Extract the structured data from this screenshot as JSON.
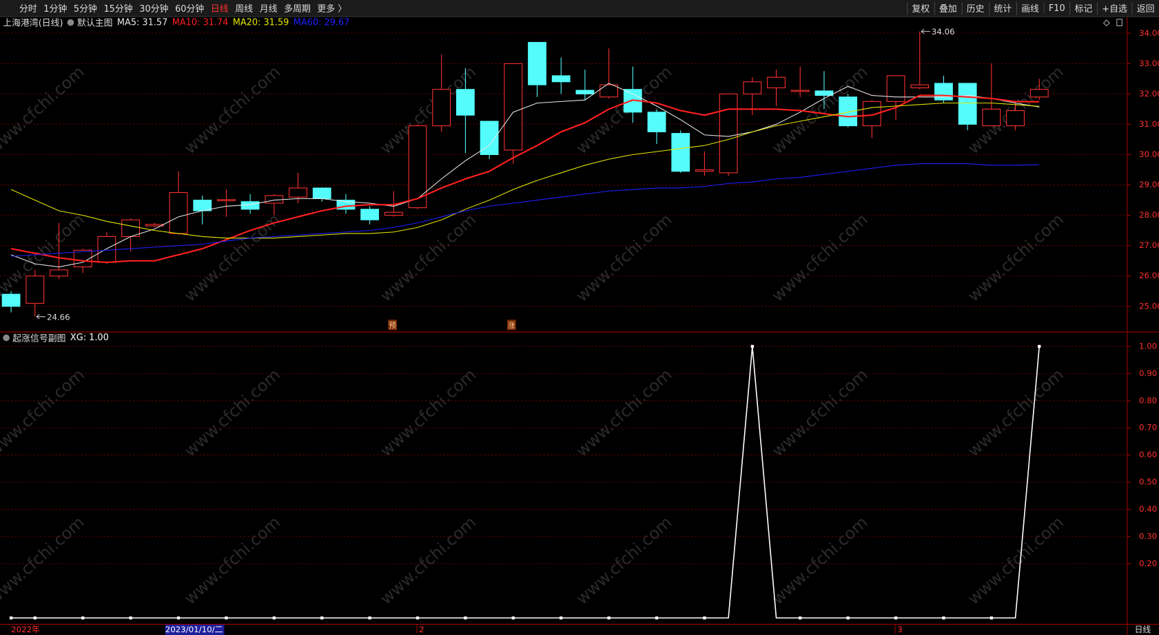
{
  "toolbar": {
    "left": [
      {
        "text": "分时"
      },
      {
        "text": "1分钟"
      },
      {
        "text": "5分钟"
      },
      {
        "text": "15分钟"
      },
      {
        "text": "30分钟"
      },
      {
        "text": "60分钟"
      },
      {
        "text": "日线",
        "selected": true
      },
      {
        "text": "周线"
      },
      {
        "text": "月线"
      },
      {
        "text": "多周期"
      },
      {
        "text": "更多 〉"
      }
    ],
    "right": [
      "复权",
      "叠加",
      "历史",
      "统计",
      "画线",
      "F10",
      "标记",
      "+自选",
      "返回"
    ]
  },
  "watermark": "www.cfchi.com",
  "period_label": "日线",
  "chart_data": [
    {
      "type": "candlestick",
      "title": "上海港湾(日线)",
      "subtitle": "默认主图",
      "categories": [
        "2022年",
        null,
        null,
        null,
        null,
        null,
        null,
        "2023/01/10/二",
        null,
        null,
        null,
        null,
        null,
        null,
        null,
        null,
        null,
        "2",
        null,
        null,
        null,
        null,
        null,
        null,
        null,
        null,
        null,
        null,
        null,
        null,
        null,
        null,
        null,
        null,
        null,
        null,
        null,
        "3",
        null,
        null,
        null,
        null,
        null,
        null
      ],
      "open": [
        25.4,
        25.1,
        26.0,
        26.3,
        26.45,
        27.3,
        27.65,
        27.4,
        28.5,
        28.48,
        28.45,
        28.4,
        28.6,
        28.9,
        28.5,
        28.2,
        28.0,
        28.25,
        30.95,
        32.15,
        31.1,
        30.15,
        33.7,
        32.6,
        32.12,
        31.9,
        32.15,
        31.4,
        30.7,
        29.45,
        29.4,
        32.0,
        32.2,
        32.08,
        32.1,
        31.9,
        30.95,
        31.75,
        32.2,
        32.35,
        32.35,
        30.95,
        30.95,
        31.9
      ],
      "high": [
        25.5,
        26.2,
        27.75,
        26.9,
        27.45,
        27.9,
        27.75,
        29.45,
        28.65,
        28.85,
        28.7,
        28.7,
        29.4,
        28.9,
        28.7,
        28.3,
        28.8,
        31.0,
        33.3,
        32.85,
        31.1,
        33.0,
        33.7,
        33.2,
        32.8,
        33.5,
        32.9,
        31.5,
        30.8,
        30.1,
        32.0,
        32.55,
        32.8,
        32.9,
        32.75,
        32.0,
        31.8,
        32.6,
        34.06,
        32.6,
        32.35,
        33.0,
        31.75,
        32.5
      ],
      "low": [
        24.8,
        24.66,
        25.9,
        26.1,
        26.4,
        26.8,
        27.6,
        27.35,
        27.7,
        27.95,
        28.05,
        28.0,
        28.4,
        28.45,
        28.05,
        27.7,
        27.95,
        28.2,
        30.75,
        30.05,
        29.85,
        29.7,
        31.9,
        32.0,
        31.8,
        31.85,
        31.05,
        30.35,
        29.4,
        29.3,
        29.3,
        31.3,
        31.6,
        31.9,
        31.5,
        30.9,
        30.55,
        31.15,
        32.15,
        31.7,
        30.8,
        30.95,
        30.8,
        31.8
      ],
      "close": [
        25.0,
        26.0,
        26.2,
        26.85,
        27.3,
        27.85,
        27.7,
        28.75,
        28.15,
        28.52,
        28.2,
        28.65,
        28.9,
        28.55,
        28.2,
        27.85,
        28.1,
        30.95,
        32.15,
        31.3,
        30.0,
        33.0,
        32.3,
        32.4,
        32.0,
        32.3,
        31.4,
        30.75,
        29.45,
        29.5,
        32.0,
        32.4,
        32.55,
        32.12,
        31.95,
        30.95,
        31.75,
        32.6,
        32.3,
        31.8,
        31.0,
        31.5,
        31.45,
        32.15
      ],
      "up_color": "#ff3232",
      "down_color": "#54fcfc",
      "max_high": 34.06,
      "min_low": 24.66,
      "series": [
        {
          "name": "MA5: 31.57",
          "color": "#e8e8e8",
          "width": 1,
          "values": [
            26.7,
            26.4,
            26.3,
            26.45,
            26.9,
            27.3,
            27.55,
            27.95,
            28.15,
            28.3,
            28.35,
            28.5,
            28.55,
            28.55,
            28.45,
            28.4,
            28.3,
            28.55,
            29.2,
            29.8,
            30.3,
            31.4,
            31.7,
            31.75,
            31.8,
            32.35,
            32.0,
            31.6,
            31.15,
            30.65,
            30.6,
            30.75,
            31.0,
            31.4,
            31.85,
            32.25,
            31.95,
            31.9,
            31.9,
            31.9,
            31.95,
            31.85,
            31.7,
            31.57
          ]
        },
        {
          "name": "MA10: 31.74",
          "color": "#ff2020",
          "width": 2,
          "values": [
            26.9,
            26.75,
            26.6,
            26.5,
            26.45,
            26.5,
            26.5,
            26.7,
            26.9,
            27.2,
            27.5,
            27.75,
            27.95,
            28.15,
            28.3,
            28.35,
            28.35,
            28.55,
            28.9,
            29.2,
            29.45,
            29.9,
            30.3,
            30.75,
            31.05,
            31.5,
            31.8,
            31.7,
            31.45,
            31.3,
            31.5,
            31.5,
            31.5,
            31.45,
            31.35,
            31.25,
            31.3,
            31.55,
            31.95,
            31.95,
            31.9,
            31.85,
            31.75,
            31.74
          ]
        },
        {
          "name": "MA20: 31.59",
          "color": "#e6e600",
          "width": 1,
          "values": [
            28.85,
            28.5,
            28.15,
            28.0,
            27.8,
            27.65,
            27.5,
            27.4,
            27.3,
            27.25,
            27.25,
            27.25,
            27.3,
            27.35,
            27.4,
            27.4,
            27.45,
            27.6,
            27.85,
            28.2,
            28.5,
            28.85,
            29.15,
            29.4,
            29.65,
            29.85,
            30.0,
            30.1,
            30.2,
            30.3,
            30.5,
            30.75,
            30.95,
            31.1,
            31.25,
            31.4,
            31.55,
            31.6,
            31.65,
            31.7,
            31.7,
            31.7,
            31.65,
            31.59
          ]
        },
        {
          "name": "MA60: 29.67",
          "color": "#2020ff",
          "width": 1,
          "values": [
            26.65,
            26.7,
            26.75,
            26.8,
            26.85,
            26.9,
            26.95,
            27.0,
            27.05,
            27.15,
            27.25,
            27.3,
            27.35,
            27.4,
            27.45,
            27.5,
            27.6,
            27.75,
            27.95,
            28.15,
            28.3,
            28.4,
            28.5,
            28.6,
            28.7,
            28.8,
            28.85,
            28.9,
            28.9,
            28.95,
            29.05,
            29.1,
            29.2,
            29.25,
            29.35,
            29.45,
            29.55,
            29.65,
            29.7,
            29.7,
            29.7,
            29.65,
            29.65,
            29.67
          ]
        }
      ],
      "signals": [
        "预",
        "涨"
      ],
      "ylim": [
        24.17,
        34.56
      ],
      "yticks": [
        {
          "value": 25,
          "label": "25.00"
        },
        {
          "value": 26,
          "label": "26.00"
        },
        {
          "value": 27,
          "label": "27.00"
        },
        {
          "value": 28,
          "label": "28.00"
        },
        {
          "value": 29,
          "label": "29.00"
        },
        {
          "value": 30,
          "label": "30.00"
        },
        {
          "value": 31,
          "label": "31.00"
        },
        {
          "value": 32,
          "label": "32.00"
        },
        {
          "value": 33,
          "label": "33.00"
        },
        {
          "value": 34,
          "label": "34.00"
        }
      ],
      "grid": true
    },
    {
      "type": "line",
      "title": "起涨信号副图",
      "series": [
        {
          "name": "XG: 1.00",
          "color": "#ffffff",
          "values": [
            0,
            0,
            0,
            0,
            0,
            0,
            0,
            0,
            0,
            0,
            0,
            0,
            0,
            0,
            0,
            0,
            0,
            0,
            0,
            0,
            0,
            0,
            0,
            0,
            0,
            0,
            0,
            0,
            0,
            0,
            0,
            1,
            0,
            0,
            0,
            0,
            0,
            0,
            0,
            0,
            0,
            0,
            0,
            1
          ]
        }
      ],
      "ylim": [
        -0.022,
        1.052
      ],
      "yticks": [
        {
          "value": 0.2,
          "label": "0.20"
        },
        {
          "value": 0.3,
          "label": "0.30"
        },
        {
          "value": 0.4,
          "label": "0.40"
        },
        {
          "value": 0.5,
          "label": "0.50"
        },
        {
          "value": 0.6,
          "label": "0.60"
        },
        {
          "value": 0.7,
          "label": "0.70"
        },
        {
          "value": 0.8,
          "label": "0.80"
        },
        {
          "value": 0.9,
          "label": "0.90"
        },
        {
          "value": 1,
          "label": "1.00"
        }
      ],
      "grid": true
    }
  ]
}
